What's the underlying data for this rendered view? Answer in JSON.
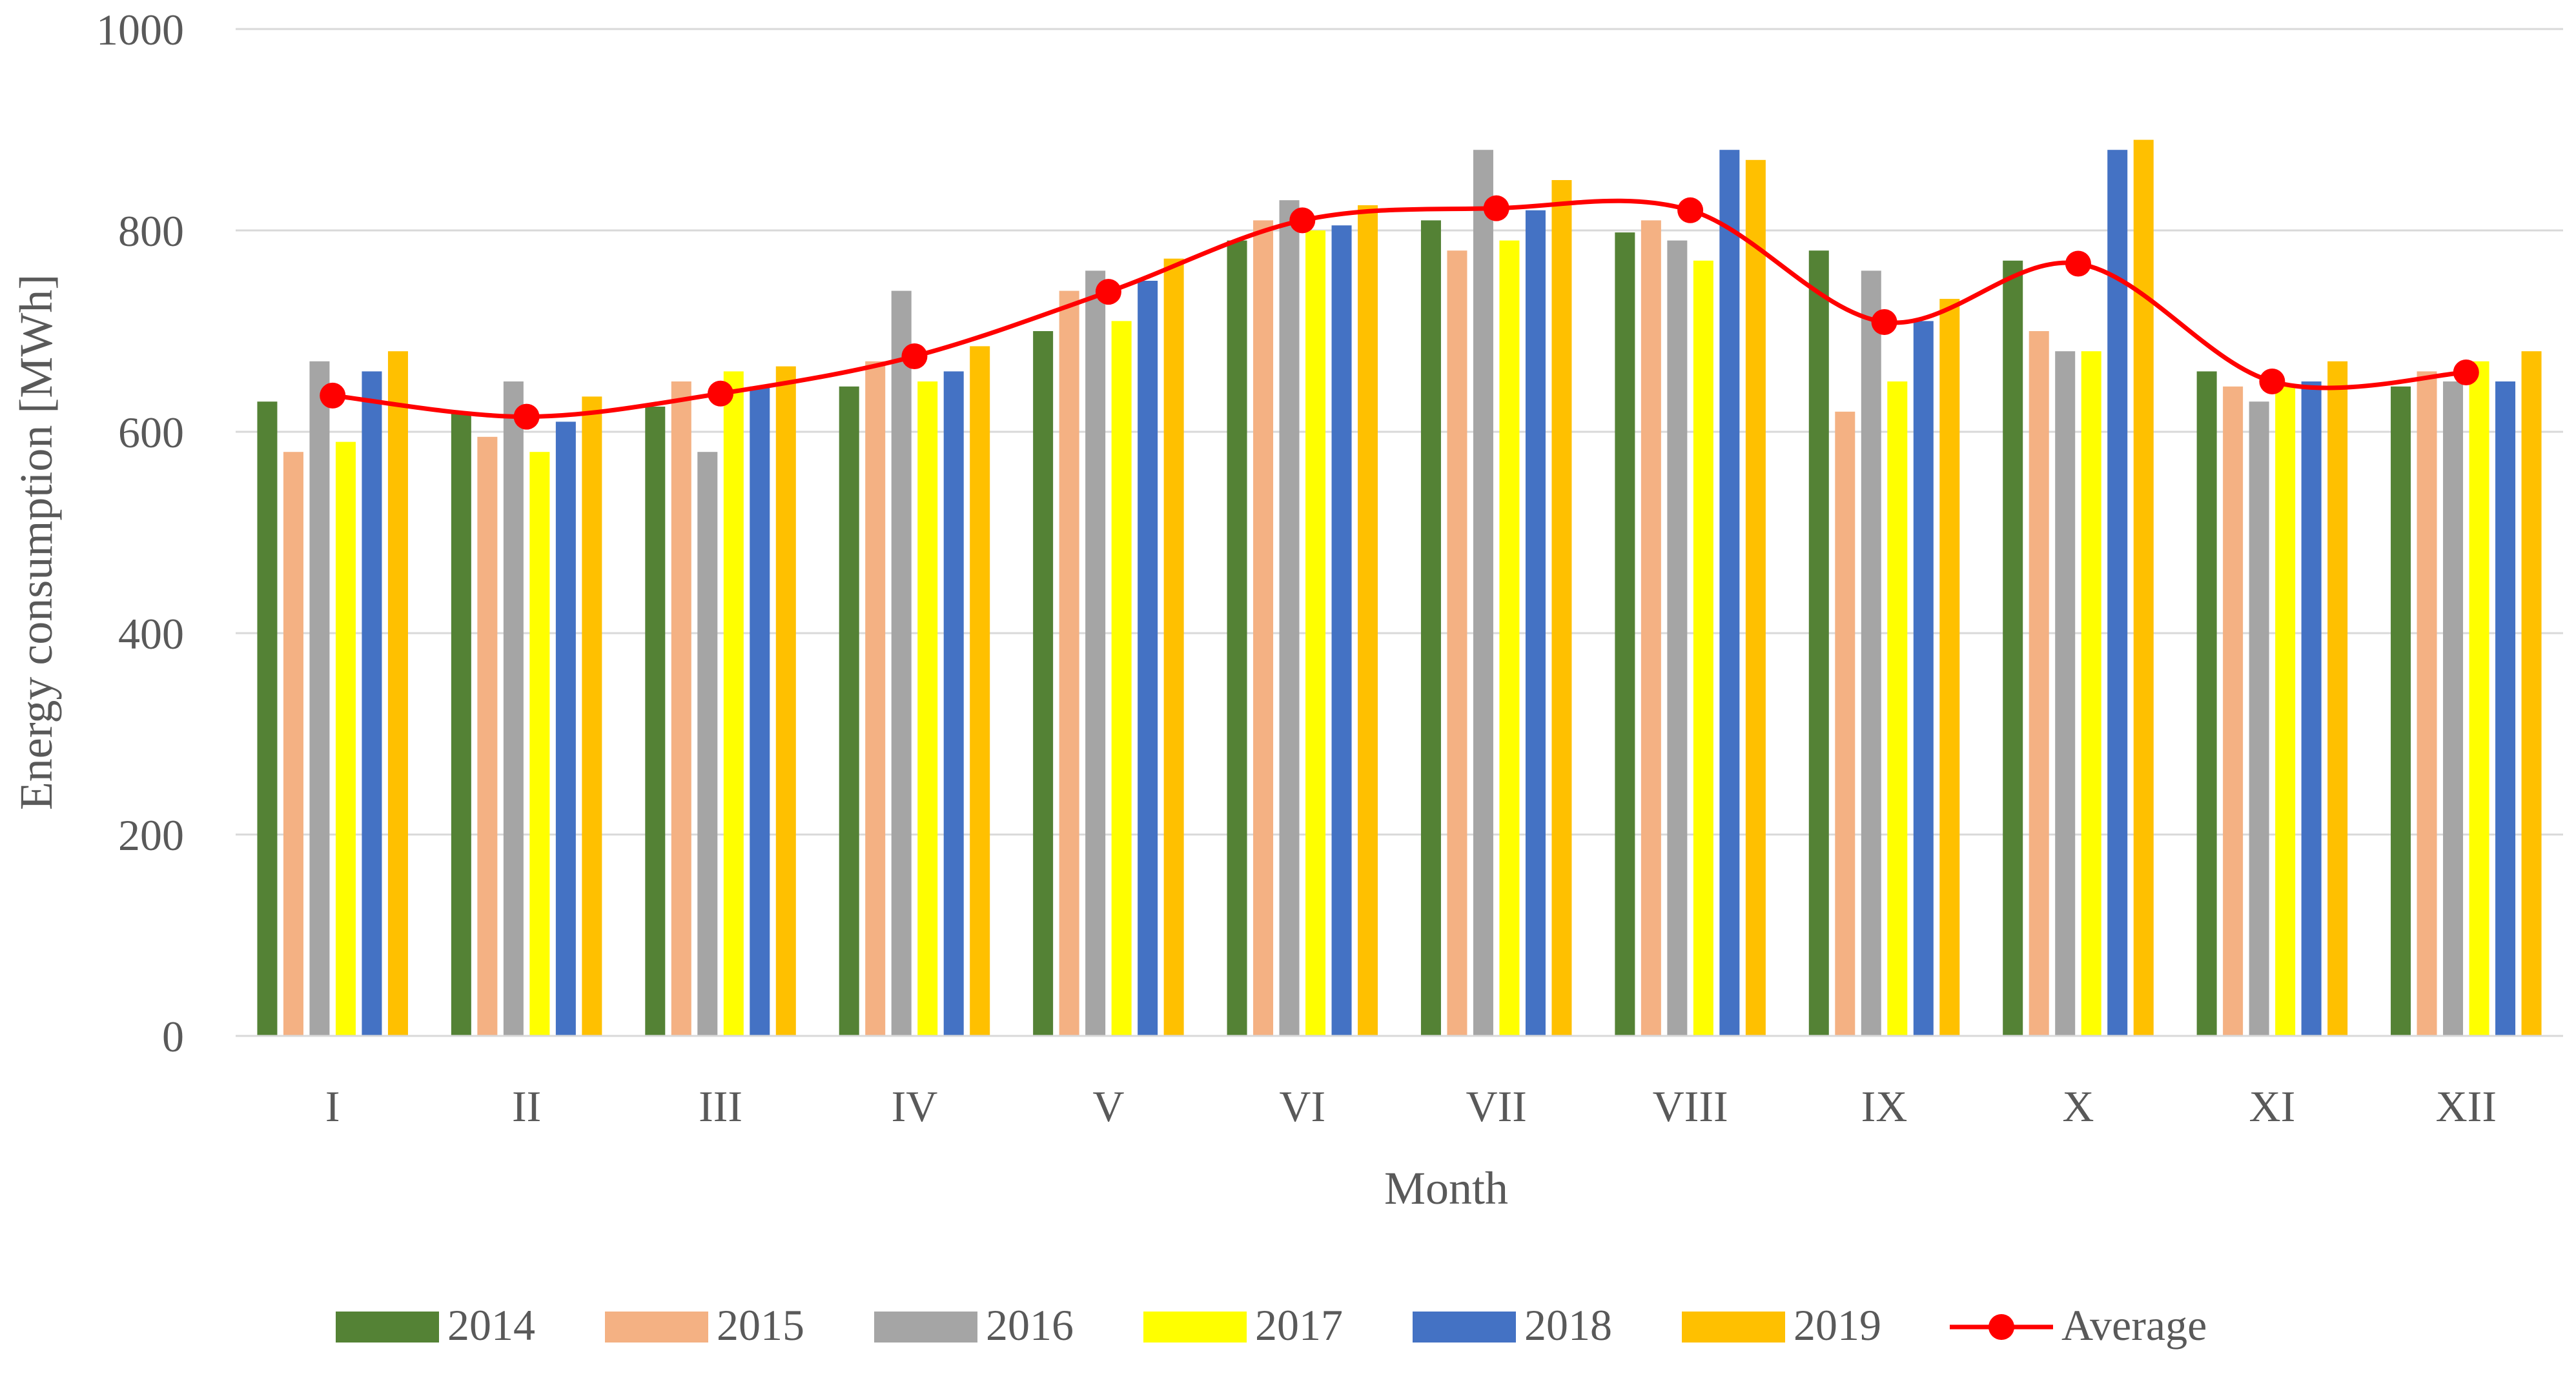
{
  "chart_data": {
    "type": "bar",
    "title": "",
    "xlabel": "Month",
    "ylabel": "Energy consumption [MWh]",
    "ylim": [
      0,
      1000
    ],
    "yticks": [
      0,
      200,
      400,
      600,
      800,
      1000
    ],
    "grid": true,
    "legend_position": "bottom",
    "categories": [
      "I",
      "II",
      "III",
      "IV",
      "V",
      "VI",
      "VII",
      "VIII",
      "IX",
      "X",
      "XI",
      "XII"
    ],
    "series": [
      {
        "name": "2014",
        "color": "#548235",
        "values": [
          630,
          620,
          625,
          645,
          700,
          790,
          810,
          798,
          780,
          770,
          660,
          645
        ]
      },
      {
        "name": "2015",
        "color": "#F4B183",
        "values": [
          580,
          595,
          650,
          670,
          740,
          810,
          780,
          810,
          620,
          700,
          645,
          660
        ]
      },
      {
        "name": "2016",
        "color": "#A5A5A5",
        "values": [
          670,
          650,
          580,
          740,
          760,
          830,
          880,
          790,
          760,
          680,
          630,
          650
        ]
      },
      {
        "name": "2017",
        "color": "#FFFF00",
        "values": [
          590,
          580,
          660,
          650,
          710,
          800,
          790,
          770,
          650,
          680,
          645,
          670
        ]
      },
      {
        "name": "2018",
        "color": "#4472C4",
        "values": [
          660,
          610,
          645,
          660,
          750,
          805,
          820,
          880,
          710,
          880,
          650,
          650
        ]
      },
      {
        "name": "2019",
        "color": "#FFC000",
        "values": [
          680,
          635,
          665,
          685,
          772,
          825,
          850,
          870,
          732,
          890,
          670,
          680
        ]
      }
    ],
    "line_series": {
      "name": "Average",
      "color": "#FF0000",
      "values": [
        636,
        615,
        638,
        675,
        739,
        810,
        822,
        820,
        709,
        767,
        650,
        659
      ]
    }
  }
}
